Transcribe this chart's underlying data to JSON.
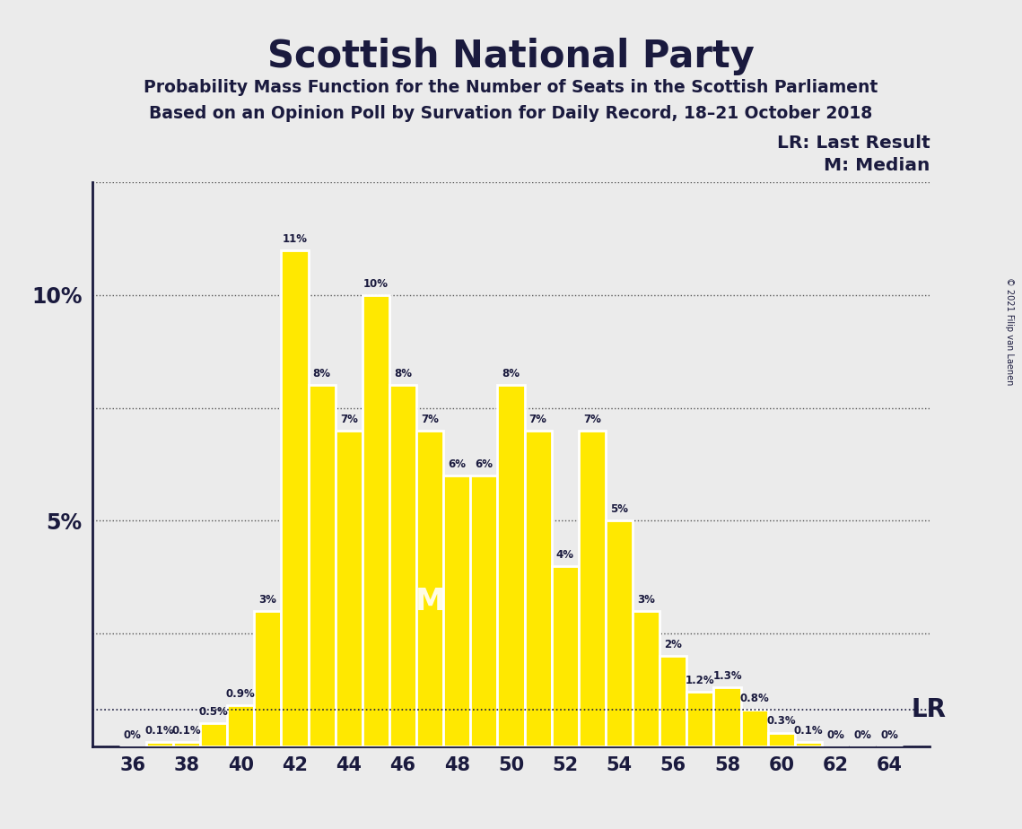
{
  "title": "Scottish National Party",
  "subtitle1": "Probability Mass Function for the Number of Seats in the Scottish Parliament",
  "subtitle2": "Based on an Opinion Poll by Survation for Daily Record, 18–21 October 2018",
  "background_color": "#ebebeb",
  "bar_color": "#FFE800",
  "bar_edge_color": "#ffffff",
  "text_color": "#1a1a3e",
  "seats": [
    36,
    37,
    38,
    39,
    40,
    41,
    42,
    43,
    44,
    45,
    46,
    47,
    48,
    49,
    50,
    51,
    52,
    53,
    54,
    55,
    56,
    57,
    58,
    59,
    60,
    61,
    62,
    63,
    64
  ],
  "probabilities": [
    0.0,
    0.1,
    0.1,
    0.5,
    0.9,
    3.0,
    11.0,
    8.0,
    7.0,
    10.0,
    8.0,
    7.0,
    6.0,
    6.0,
    8.0,
    7.0,
    4.0,
    7.0,
    5.0,
    3.0,
    2.0,
    1.2,
    1.3,
    0.8,
    0.3,
    0.1,
    0.0,
    0.0,
    0.0
  ],
  "bar_labels": [
    "0%",
    "0.1%",
    "0.1%",
    "0.5%",
    "0.9%",
    "3%",
    "11%",
    "8%",
    "7%",
    "10%",
    "8%",
    "7%",
    "6%",
    "6%",
    "8%",
    "7%",
    "4%",
    "7%",
    "5%",
    "3%",
    "2%",
    "1.2%",
    "1.3%",
    "0.8%",
    "0.3%",
    "0.1%",
    "0%",
    "0%",
    "0%"
  ],
  "median_seat": 47,
  "last_result_y": 0.8,
  "ylim": [
    0,
    12.5
  ],
  "yticks": [
    0,
    2.5,
    5.0,
    7.5,
    10.0,
    12.5
  ],
  "ytick_labels": [
    "",
    "",
    "5%",
    "",
    "10%",
    ""
  ],
  "xtick_seats": [
    36,
    38,
    40,
    42,
    44,
    46,
    48,
    50,
    52,
    54,
    56,
    58,
    60,
    62,
    64
  ],
  "copyright_text": "© 2021 Filip van Laenen",
  "lr_label": "LR",
  "median_label": "M",
  "legend_lr": "LR: Last Result",
  "legend_m": "M: Median"
}
